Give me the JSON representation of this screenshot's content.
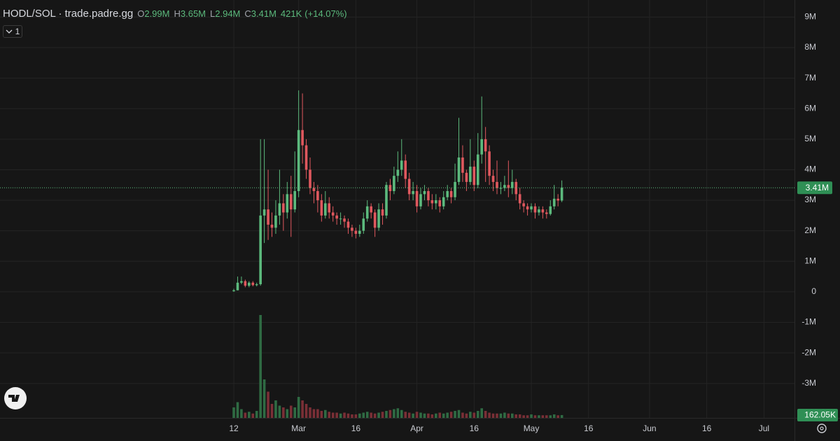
{
  "header": {
    "symbol": "HODL/SOL · trade.padre.gg",
    "ohlc": [
      {
        "key": "O",
        "value": "2.99M"
      },
      {
        "key": "H",
        "value": "3.65M"
      },
      {
        "key": "L",
        "value": "2.94M"
      },
      {
        "key": "C",
        "value": "3.41M"
      }
    ],
    "change": "421K",
    "change_pct": "(+14.07%)",
    "indicator_count": "1"
  },
  "chart_data": {
    "type": "candlestick",
    "x": [
      0,
      1,
      2,
      3,
      4,
      5,
      6,
      7,
      8,
      9,
      10,
      11,
      12,
      13,
      14,
      15,
      16,
      17,
      18,
      19,
      20,
      21,
      22,
      23,
      24,
      25,
      26,
      27,
      28,
      29,
      30,
      31,
      32,
      33,
      34,
      35,
      36,
      37,
      38,
      39,
      40,
      41,
      42,
      43,
      44,
      45,
      46,
      47,
      48,
      49,
      50,
      51,
      52,
      53,
      54,
      55,
      56,
      57,
      58,
      59,
      60,
      61,
      62,
      63,
      64,
      65,
      66,
      67,
      68,
      69,
      70,
      71,
      72,
      73,
      74,
      75,
      76,
      77,
      78,
      79,
      80,
      81,
      82,
      83,
      84,
      85,
      86
    ],
    "open": [
      0.02,
      0.05,
      0.3,
      0.35,
      0.2,
      0.3,
      0.22,
      0.25,
      2.5,
      2.7,
      2.2,
      2.1,
      2.5,
      2.9,
      2.6,
      3.2,
      2.7,
      3.3,
      5.3,
      4.8,
      4.0,
      3.4,
      3.3,
      3.0,
      2.5,
      2.9,
      2.6,
      2.5,
      2.4,
      2.4,
      2.3,
      2.1,
      2.0,
      1.9,
      2.0,
      2.4,
      2.8,
      2.6,
      2.1,
      2.7,
      2.5,
      3.5,
      3.3,
      3.8,
      4.0,
      4.3,
      3.7,
      3.2,
      3.3,
      2.8,
      3.2,
      3.3,
      3.0,
      2.9,
      3.0,
      2.8,
      3.1,
      3.3,
      3.1,
      3.6,
      4.4,
      3.9,
      3.6,
      4.1,
      3.5,
      4.5,
      5.0,
      4.6,
      3.8,
      3.6,
      3.4,
      3.4,
      3.5,
      3.4,
      3.6,
      3.2,
      2.9,
      2.8,
      2.7,
      2.8,
      2.6,
      2.7,
      2.6,
      2.55,
      2.8,
      3.05,
      2.99
    ],
    "high": [
      0.1,
      0.5,
      0.5,
      0.4,
      0.35,
      0.35,
      0.3,
      5.0,
      5.0,
      4.0,
      2.6,
      3.0,
      4.0,
      3.2,
      3.6,
      3.8,
      4.6,
      6.6,
      6.5,
      5.0,
      4.4,
      3.6,
      3.5,
      3.2,
      3.3,
      3.1,
      2.8,
      2.6,
      2.6,
      2.5,
      2.4,
      2.2,
      2.1,
      2.2,
      2.6,
      3.0,
      2.9,
      2.7,
      2.9,
      2.9,
      3.6,
      3.7,
      4.1,
      4.6,
      5.0,
      4.5,
      3.9,
      3.6,
      3.5,
      3.4,
      3.5,
      3.4,
      3.2,
      3.2,
      3.1,
      3.3,
      3.5,
      3.4,
      4.2,
      5.7,
      4.8,
      4.0,
      5.0,
      4.3,
      5.2,
      6.4,
      5.4,
      4.8,
      4.0,
      4.3,
      3.6,
      3.8,
      4.3,
      4.0,
      3.7,
      3.4,
      3.0,
      2.9,
      2.9,
      2.9,
      2.8,
      2.8,
      2.7,
      3.0,
      3.5,
      3.2,
      3.65
    ],
    "low": [
      0,
      0.05,
      0.25,
      0.15,
      0.15,
      0.18,
      0.18,
      0.2,
      1.6,
      1.7,
      1.8,
      1.9,
      2.2,
      2.0,
      2.4,
      1.8,
      2.6,
      3.1,
      4.2,
      3.7,
      3.2,
      2.9,
      2.6,
      2.3,
      2.4,
      2.4,
      2.3,
      2.2,
      2.2,
      2.1,
      1.9,
      1.8,
      1.75,
      1.8,
      1.9,
      2.3,
      2.4,
      1.8,
      2.0,
      2.2,
      2.4,
      3.0,
      3.2,
      3.6,
      3.8,
      3.4,
      3.0,
      3.0,
      2.6,
      2.7,
      3.0,
      2.8,
      2.7,
      2.7,
      2.6,
      2.7,
      3.0,
      2.9,
      3.0,
      3.5,
      3.6,
      3.3,
      3.5,
      3.3,
      3.4,
      4.2,
      3.6,
      3.5,
      3.3,
      3.2,
      3.2,
      3.3,
      3.1,
      3.2,
      3.0,
      2.7,
      2.6,
      2.5,
      2.6,
      2.4,
      2.5,
      2.4,
      2.4,
      2.5,
      2.7,
      2.8,
      2.94
    ],
    "close": [
      0.05,
      0.3,
      0.35,
      0.2,
      0.3,
      0.22,
      0.25,
      2.5,
      2.7,
      2.2,
      2.1,
      2.5,
      2.9,
      2.6,
      3.2,
      2.7,
      3.3,
      5.3,
      4.8,
      4.0,
      3.4,
      3.3,
      3.0,
      2.5,
      2.9,
      2.6,
      2.5,
      2.4,
      2.4,
      2.3,
      2.1,
      2.0,
      1.9,
      2.0,
      2.4,
      2.8,
      2.6,
      2.1,
      2.7,
      2.5,
      3.5,
      3.3,
      3.8,
      4.0,
      4.3,
      3.7,
      3.2,
      3.3,
      2.8,
      3.2,
      3.3,
      3.0,
      2.9,
      3.0,
      2.8,
      3.1,
      3.3,
      3.1,
      3.6,
      4.4,
      3.9,
      3.6,
      4.1,
      3.5,
      4.5,
      5.0,
      4.6,
      3.8,
      3.6,
      3.4,
      3.4,
      3.5,
      3.4,
      3.6,
      3.2,
      2.9,
      2.8,
      2.7,
      2.8,
      2.6,
      2.7,
      2.6,
      2.55,
      2.8,
      3.05,
      2.99,
      3.41
    ],
    "volume": [
      600,
      900,
      500,
      300,
      350,
      250,
      400,
      5880,
      2200,
      1500,
      800,
      1000,
      700,
      600,
      500,
      700,
      600,
      1200,
      1000,
      800,
      600,
      500,
      500,
      400,
      450,
      350,
      300,
      300,
      250,
      300,
      250,
      200,
      200,
      250,
      300,
      350,
      300,
      250,
      300,
      350,
      400,
      450,
      500,
      550,
      450,
      350,
      300,
      250,
      350,
      300,
      250,
      250,
      200,
      250,
      300,
      250,
      300,
      350,
      400,
      450,
      300,
      250,
      350,
      300,
      400,
      550,
      400,
      300,
      250,
      250,
      250,
      300,
      250,
      250,
      200,
      200,
      150,
      150,
      200,
      150,
      150,
      150,
      150,
      150,
      200,
      150,
      162.05
    ],
    "colors": {
      "up": "#5cba7d",
      "down": "#e0585e",
      "volume_up": "#2f6b43",
      "volume_down": "#7a2f36"
    },
    "xlim": [
      -61.3,
      147
    ],
    "xticks": [
      {
        "value": 0,
        "label": "12"
      },
      {
        "value": 17,
        "label": "Mar"
      },
      {
        "value": 32,
        "label": "16"
      },
      {
        "value": 48,
        "label": "Apr"
      },
      {
        "value": 63,
        "label": "16"
      },
      {
        "value": 78,
        "label": "May"
      },
      {
        "value": 93,
        "label": "16"
      },
      {
        "value": 109,
        "label": "Jun"
      },
      {
        "value": 124,
        "label": "16"
      },
      {
        "value": 139,
        "label": "Jul"
      }
    ],
    "ylim": [
      -4.13,
      9.56
    ],
    "yticks": [
      {
        "value": 9,
        "label": "9M"
      },
      {
        "value": 8,
        "label": "8M"
      },
      {
        "value": 7,
        "label": "7M"
      },
      {
        "value": 6,
        "label": "6M"
      },
      {
        "value": 5,
        "label": "5M"
      },
      {
        "value": 4,
        "label": "4M"
      },
      {
        "value": 3,
        "label": "3M"
      },
      {
        "value": 2,
        "label": "2M"
      },
      {
        "value": 1,
        "label": "1M"
      },
      0,
      {
        "value": -1,
        "label": "-1M"
      },
      {
        "value": -2,
        "label": "-2M"
      },
      {
        "value": -3,
        "label": "-3M"
      }
    ],
    "y2lim": [
      0,
      23880
    ],
    "last_price": {
      "value": 3.41,
      "label": "3.41M"
    },
    "last_volume": {
      "value": 162.05,
      "label": "162.05K"
    },
    "grid": true
  }
}
